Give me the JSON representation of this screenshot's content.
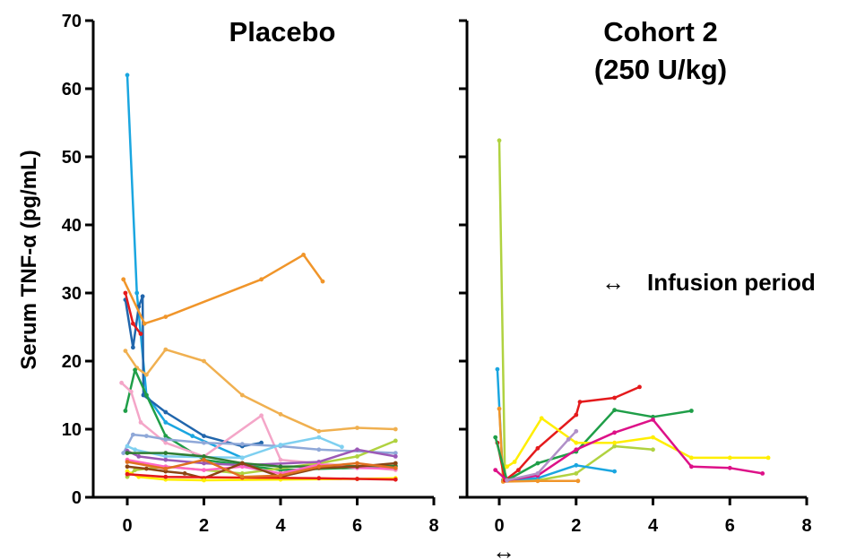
{
  "ylabel": "Serum TNF-α (pg/mL)",
  "legend": {
    "label": "Infusion period",
    "symbol": "↔"
  },
  "chart_data": [
    {
      "type": "line",
      "title": "Placebo",
      "xlabel": "",
      "ylabel": "Serum TNF-α (pg/mL)",
      "xlim": [
        -0.3,
        8
      ],
      "ylim": [
        0,
        70
      ],
      "xticks": [
        0,
        2,
        4,
        6,
        8
      ],
      "yticks": [
        0,
        10,
        20,
        30,
        40,
        50,
        60,
        70
      ],
      "grid": false,
      "series": [
        {
          "color": "#1aa6e0",
          "points": [
            [
              0,
              62
            ],
            [
              0.25,
              30
            ],
            [
              0.5,
              15
            ],
            [
              1,
              11
            ],
            [
              1.7,
              9
            ],
            [
              3,
              5.8
            ]
          ]
        },
        {
          "color": "#2166ac",
          "points": [
            [
              -0.05,
              29
            ],
            [
              0.15,
              22
            ],
            [
              0.3,
              28
            ],
            [
              0.4,
              29.5
            ],
            [
              0.42,
              15
            ],
            [
              1,
              12.5
            ],
            [
              2,
              9
            ],
            [
              3,
              7.5
            ],
            [
              3.5,
              8
            ]
          ]
        },
        {
          "color": "#e41a1c",
          "points": [
            [
              -0.05,
              30
            ],
            [
              0.15,
              25.5
            ],
            [
              0.35,
              24
            ]
          ]
        },
        {
          "color": "#f0952a",
          "points": [
            [
              -0.1,
              32
            ],
            [
              0.45,
              25.5
            ],
            [
              1,
              26.5
            ],
            [
              3.5,
              32
            ],
            [
              4.6,
              35.6
            ],
            [
              5.1,
              31.7
            ]
          ]
        },
        {
          "color": "#f0b050",
          "points": [
            [
              -0.05,
              21.5
            ],
            [
              0.25,
              19
            ],
            [
              0.5,
              18
            ],
            [
              1,
              21.7
            ],
            [
              2,
              20
            ],
            [
              3,
              15
            ],
            [
              4,
              12.2
            ],
            [
              5,
              9.7
            ],
            [
              6,
              10.2
            ],
            [
              7,
              10
            ]
          ]
        },
        {
          "color": "#1f9e48",
          "points": [
            [
              -0.05,
              12.7
            ],
            [
              0.2,
              18.7
            ],
            [
              0.5,
              15
            ],
            [
              1,
              9
            ],
            [
              2,
              5.5
            ],
            [
              4,
              4
            ],
            [
              7,
              4.5
            ]
          ]
        },
        {
          "color": "#f4a6c8",
          "points": [
            [
              -0.15,
              16.8
            ],
            [
              0.1,
              15.5
            ],
            [
              0.35,
              11
            ],
            [
              1,
              8
            ],
            [
              2,
              6
            ],
            [
              3.5,
              12
            ],
            [
              4,
              5.5
            ],
            [
              7,
              4
            ]
          ]
        },
        {
          "color": "#8fa8d8",
          "points": [
            [
              -0.1,
              6.5
            ],
            [
              0.15,
              9.2
            ],
            [
              0.5,
              9
            ],
            [
              1,
              8.5
            ],
            [
              2,
              8
            ],
            [
              3,
              7.8
            ],
            [
              4,
              7.5
            ],
            [
              5,
              7
            ],
            [
              7,
              6.5
            ]
          ]
        },
        {
          "color": "#7fd0f0",
          "points": [
            [
              0,
              7.5
            ],
            [
              0.2,
              7
            ],
            [
              1,
              6
            ],
            [
              3,
              5.8
            ],
            [
              4,
              7.7
            ],
            [
              5,
              8.8
            ],
            [
              5.6,
              7.4
            ]
          ]
        },
        {
          "color": "#b0d240",
          "points": [
            [
              0,
              3
            ],
            [
              0.2,
              4
            ],
            [
              1,
              4.5
            ],
            [
              3,
              3.5
            ],
            [
              5,
              5
            ],
            [
              6,
              6
            ],
            [
              7,
              8.3
            ]
          ]
        },
        {
          "color": "#9b59b6",
          "points": [
            [
              0,
              6.8
            ],
            [
              0.3,
              6
            ],
            [
              1,
              5.5
            ],
            [
              2,
              5
            ],
            [
              3,
              4.7
            ],
            [
              5,
              5.2
            ],
            [
              6,
              7
            ],
            [
              7,
              6
            ]
          ]
        },
        {
          "color": "#2e7d32",
          "points": [
            [
              0,
              6.5
            ],
            [
              1,
              6.5
            ],
            [
              2,
              6
            ],
            [
              3,
              5
            ],
            [
              4,
              4.5
            ],
            [
              7,
              4.6
            ]
          ]
        },
        {
          "color": "#ff66c4",
          "points": [
            [
              0,
              5.5
            ],
            [
              1,
              4.5
            ],
            [
              2,
              4
            ],
            [
              3,
              4.5
            ],
            [
              4,
              3.5
            ],
            [
              5,
              4.8
            ],
            [
              6,
              4.3
            ],
            [
              7,
              4.2
            ]
          ]
        },
        {
          "color": "#8b4513",
          "points": [
            [
              0,
              4.5
            ],
            [
              0.5,
              4.2
            ],
            [
              1,
              3.8
            ],
            [
              1.5,
              3.5
            ],
            [
              2,
              2.8
            ],
            [
              3,
              5
            ],
            [
              4,
              3
            ],
            [
              5,
              4.3
            ],
            [
              6,
              4.5
            ],
            [
              7,
              5
            ]
          ]
        },
        {
          "color": "#ffee00",
          "points": [
            [
              0,
              3.8
            ],
            [
              0.3,
              3
            ],
            [
              1,
              2.6
            ],
            [
              2,
              2.5
            ],
            [
              4,
              2.6
            ],
            [
              6,
              2.7
            ],
            [
              7,
              2.8
            ]
          ]
        },
        {
          "color": "#e41a1c",
          "points": [
            [
              0,
              3.4
            ],
            [
              1,
              3
            ],
            [
              3,
              2.9
            ],
            [
              5,
              2.8
            ],
            [
              6,
              2.7
            ],
            [
              7,
              2.6
            ]
          ]
        },
        {
          "color": "#e07020",
          "points": [
            [
              0,
              5.2
            ],
            [
              1,
              4.2
            ],
            [
              2,
              5.5
            ],
            [
              3,
              3
            ],
            [
              4,
              3.2
            ],
            [
              5,
              4.5
            ],
            [
              6,
              5
            ],
            [
              7,
              4.3
            ]
          ]
        }
      ]
    },
    {
      "type": "line",
      "title": "Cohort 2\n(250 U/kg)",
      "xlabel": "",
      "ylabel": "",
      "xlim": [
        -0.3,
        8
      ],
      "ylim": [
        0,
        70
      ],
      "xticks": [
        0,
        2,
        4,
        6,
        8
      ],
      "yticks": [
        0,
        10,
        20,
        30,
        40,
        50,
        60,
        70
      ],
      "grid": false,
      "series": [
        {
          "color": "#b0d240",
          "points": [
            [
              0,
              52.4
            ],
            [
              0.15,
              2.5
            ],
            [
              1,
              2.5
            ],
            [
              2,
              3.5
            ],
            [
              3,
              7.5
            ],
            [
              4,
              7
            ]
          ]
        },
        {
          "color": "#1aa6e0",
          "points": [
            [
              -0.05,
              18.8
            ],
            [
              0.1,
              2.5
            ],
            [
              1,
              2.8
            ],
            [
              2,
              4.7
            ],
            [
              3,
              3.8
            ]
          ]
        },
        {
          "color": "#f0952a",
          "points": [
            [
              0,
              13
            ],
            [
              0.1,
              2.3
            ],
            [
              1,
              2.4
            ],
            [
              2.05,
              2.4
            ]
          ]
        },
        {
          "color": "#e41a1c",
          "points": [
            [
              -0.05,
              8
            ],
            [
              0.15,
              2.5
            ],
            [
              0.5,
              4
            ],
            [
              1,
              7.2
            ],
            [
              2,
              12.1
            ],
            [
              2.1,
              14
            ],
            [
              3,
              14.6
            ],
            [
              3.65,
              16.2
            ]
          ]
        },
        {
          "color": "#1f9e48",
          "points": [
            [
              -0.1,
              8.8
            ],
            [
              0.2,
              2.5
            ],
            [
              1,
              5
            ],
            [
              2,
              6.7
            ],
            [
              3,
              12.8
            ],
            [
              4,
              11.8
            ],
            [
              5,
              12.7
            ]
          ]
        },
        {
          "color": "#ffee00",
          "points": [
            [
              0.2,
              4.5
            ],
            [
              0.4,
              5.2
            ],
            [
              1.1,
              11.6
            ],
            [
              2,
              8
            ],
            [
              3,
              8
            ],
            [
              4,
              8.8
            ],
            [
              5,
              5.8
            ],
            [
              6,
              5.8
            ],
            [
              7,
              5.8
            ]
          ]
        },
        {
          "color": "#dd1188",
          "points": [
            [
              -0.1,
              4
            ],
            [
              0.2,
              2.5
            ],
            [
              1,
              3.2
            ],
            [
              2,
              7
            ],
            [
              3,
              9.5
            ],
            [
              4,
              11.4
            ],
            [
              5,
              4.5
            ],
            [
              6,
              4.3
            ],
            [
              6.85,
              3.5
            ]
          ]
        },
        {
          "color": "#b090c8",
          "points": [
            [
              0.2,
              2.5
            ],
            [
              1,
              3.5
            ],
            [
              1.8,
              8.5
            ],
            [
              2,
              9.7
            ]
          ]
        }
      ]
    }
  ]
}
